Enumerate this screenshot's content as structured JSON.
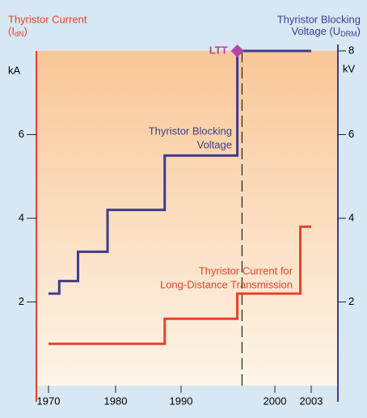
{
  "chart_data": {
    "type": "step",
    "left_title": [
      "Thyristor Current",
      "(I",
      "dN",
      ")"
    ],
    "right_title": [
      "Thyristor Blocking",
      "Voltage (U",
      "DRM",
      ")"
    ],
    "left_unit": "kA",
    "right_unit": "kV",
    "xticks": [
      1970,
      1980,
      1990,
      2000,
      2003
    ],
    "ylim": [
      0,
      8
    ],
    "yticks": [
      2,
      4,
      6
    ],
    "y2lim": [
      0,
      8
    ],
    "y2ticks": [
      2,
      4,
      6,
      8
    ],
    "series": [
      {
        "name": "Thyristor Blocking Voltage",
        "color": "#3d3c8e",
        "axis": "y2",
        "x": [
          1970,
          1971.6,
          1974.4,
          1978.8,
          1987.5,
          1996,
          2003
        ],
        "values": [
          2.2,
          2.5,
          3.2,
          4.2,
          5.5,
          8,
          8
        ]
      },
      {
        "name": "Thyristor Current for Long-Distance Transmission",
        "color": "#e8412b",
        "x": [
          1970,
          1987.5,
          1996,
          2002.1,
          2003
        ],
        "values": [
          1,
          1.6,
          2.2,
          3.8,
          3.8
        ]
      }
    ],
    "annotations": [
      {
        "text": "LTT",
        "x": 1996,
        "y": 8,
        "color": "#b445a8"
      }
    ],
    "series_labels": [
      [
        "Thyristor Blocking",
        "Voltage"
      ],
      [
        "Thyristor Current for",
        "Long-Distance Transmission"
      ]
    ],
    "vline": 1996.5
  }
}
